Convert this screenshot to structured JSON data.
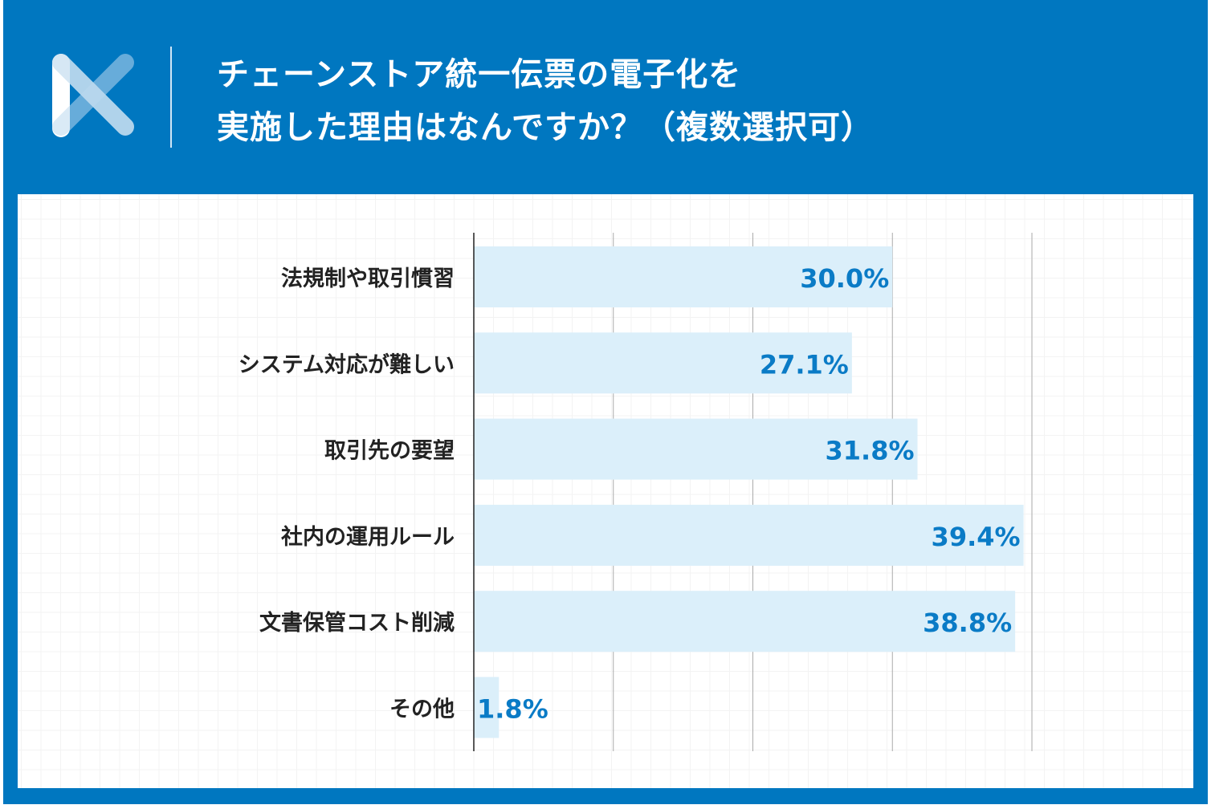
{
  "header": {
    "title_line1": "チェーンストア統一伝票の電子化を",
    "title_line2": "実施した理由はなんですか？（複数選択可）",
    "logo": "x-logo-icon"
  },
  "colors": {
    "header": "#0077c0",
    "bar": "#dbeffa",
    "value_label": "#0a7bc6",
    "text": "#222222"
  },
  "chart_data": {
    "type": "bar",
    "orientation": "horizontal",
    "categories": [
      "法規制や取引慣習",
      "システム対応が難しい",
      "取引先の要望",
      "社内の運用ルール",
      "文書保管コスト削減",
      "その他"
    ],
    "values": [
      30.0,
      27.1,
      31.8,
      39.4,
      38.8,
      1.8
    ],
    "value_labels": [
      "30.0%",
      "27.1%",
      "31.8%",
      "39.4%",
      "38.8%",
      "1.8%"
    ],
    "xlim": [
      0,
      40
    ],
    "grid": true,
    "unit": "%"
  }
}
